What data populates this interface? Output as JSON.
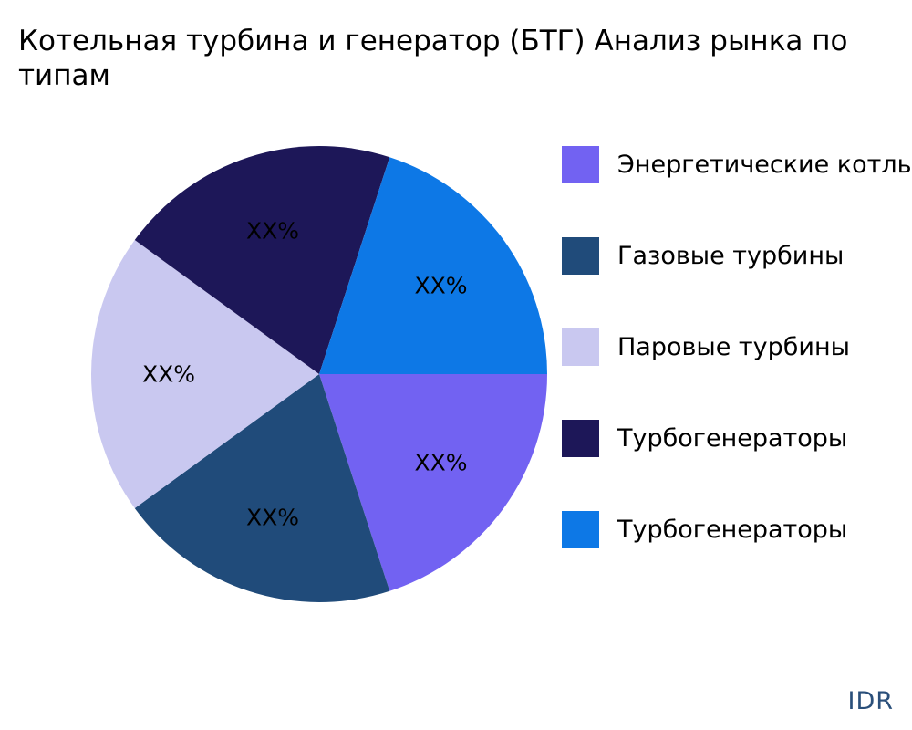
{
  "chart_data": {
    "type": "pie",
    "title_lines": [
      "Котельная турбина и генератор (БТГ) Анализ рынка по",
      "типам"
    ],
    "slices": [
      {
        "name": "Энергетические котлы",
        "value": 20,
        "label": "XX%",
        "color": "#7262f2"
      },
      {
        "name": "Газовые турбины",
        "value": 20,
        "label": "XX%",
        "color": "#204b7a"
      },
      {
        "name": "Паровые турбины",
        "value": 20,
        "label": "XX%",
        "color": "#c9c8f0"
      },
      {
        "name": "Турбогенераторы",
        "value": 20,
        "label": "XX%",
        "color": "#1d1758"
      },
      {
        "name": "Турбогенераторы",
        "value": 20,
        "label": "XX%",
        "color": "#0d78e6"
      }
    ],
    "legend_placement": "right"
  },
  "brand": {
    "text": "IDR"
  }
}
